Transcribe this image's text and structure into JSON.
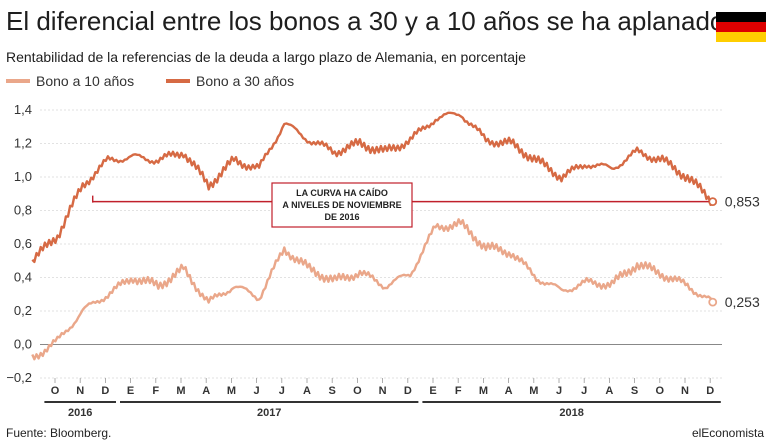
{
  "header": {
    "title": "El diferencial entre los bonos a 30 y a 10 años se ha aplanado",
    "subtitle": "Rentabilidad de la referencias de la deuda a largo plazo de Alemania, en porcentaje"
  },
  "flag": {
    "icon": "germany-flag-icon",
    "colors": [
      "#000000",
      "#dd0000",
      "#ffce00"
    ]
  },
  "footer": {
    "source": "Fuente: Bloomberg.",
    "brand": "elEconomista"
  },
  "chart_data": {
    "type": "line",
    "title": "El diferencial entre los bonos a 30 y a 10 años se ha aplanado",
    "subtitle": "Rentabilidad de la referencias de la deuda a largo plazo de Alemania, en porcentaje",
    "ylim": [
      -0.2,
      1.4
    ],
    "yticks": [
      "1,4",
      "1,2",
      "1,0",
      "0,8",
      "0,6",
      "0,4",
      "0,2",
      "0,0",
      "−0,2"
    ],
    "ytick_values": [
      1.4,
      1.2,
      1.0,
      0.8,
      0.6,
      0.4,
      0.2,
      0.0,
      -0.2
    ],
    "grid": true,
    "legend_position": "top-left",
    "months": [
      "O",
      "N",
      "D",
      "E",
      "F",
      "M",
      "A",
      "M",
      "J",
      "J",
      "A",
      "S",
      "O",
      "N",
      "D",
      "E",
      "F",
      "M",
      "A",
      "M",
      "J",
      "J",
      "A",
      "S",
      "O",
      "N",
      "D"
    ],
    "years": [
      {
        "label": "2016",
        "span": [
          0,
          2
        ]
      },
      {
        "label": "2017",
        "span": [
          3,
          14
        ]
      },
      {
        "label": "2018",
        "span": [
          15,
          26
        ]
      }
    ],
    "x": [
      "2016-09",
      "2016-10",
      "2016-11",
      "2016-12",
      "2017-01",
      "2017-02",
      "2017-03",
      "2017-04",
      "2017-05",
      "2017-06",
      "2017-07",
      "2017-08",
      "2017-09",
      "2017-10",
      "2017-11",
      "2017-12",
      "2018-01",
      "2018-02",
      "2018-03",
      "2018-04",
      "2018-05",
      "2018-06",
      "2018-07",
      "2018-08",
      "2018-09",
      "2018-10",
      "2018-11",
      "2018-12"
    ],
    "series": [
      {
        "name": "Bono a 10 años",
        "color": "#eaa78a",
        "values": [
          -0.08,
          0.02,
          0.2,
          0.3,
          0.4,
          0.35,
          0.45,
          0.25,
          0.35,
          0.28,
          0.57,
          0.45,
          0.38,
          0.43,
          0.35,
          0.42,
          0.7,
          0.72,
          0.58,
          0.55,
          0.4,
          0.32,
          0.37,
          0.36,
          0.48,
          0.42,
          0.35,
          0.253
        ],
        "end_label": "0,253"
      },
      {
        "name": "Bono a 30 años",
        "color": "#d66a44",
        "values": [
          0.5,
          0.65,
          0.95,
          1.1,
          1.12,
          1.1,
          1.15,
          0.95,
          1.1,
          1.05,
          1.32,
          1.22,
          1.15,
          1.2,
          1.15,
          1.22,
          1.35,
          1.38,
          1.22,
          1.2,
          1.1,
          1.0,
          1.08,
          1.05,
          1.15,
          1.1,
          1.0,
          0.853
        ],
        "end_label": "0,853"
      }
    ],
    "annotation": {
      "lines": [
        "LA CURVA HA CAÍDO",
        "A NIVELES DE NOVIEMBRE",
        "DE 2016"
      ],
      "reference_value": 0.853,
      "line_color": "#c0202b"
    }
  }
}
